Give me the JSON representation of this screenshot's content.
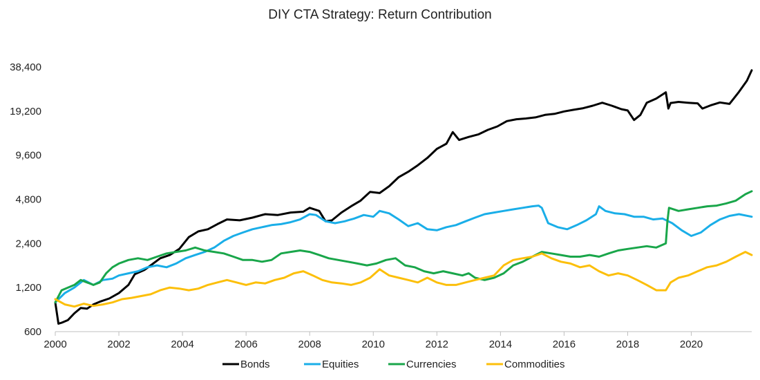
{
  "chart_data": {
    "type": "line",
    "title": "DIY CTA Strategy:  Return Contribution",
    "xlabel": "",
    "ylabel": "",
    "y_scale": "log",
    "ylim": [
      600,
      40000
    ],
    "xlim": [
      2000,
      2021.9
    ],
    "y_ticks": [
      600,
      1200,
      2400,
      4800,
      9600,
      19200,
      38400
    ],
    "y_tick_labels": [
      "600",
      "1,200",
      "2,400",
      "4,800",
      "9,600",
      "19,200",
      "38,400"
    ],
    "x_ticks": [
      2000,
      2002,
      2004,
      2006,
      2008,
      2010,
      2012,
      2014,
      2016,
      2018,
      2020
    ],
    "x_tick_labels": [
      "2000",
      "2002",
      "2004",
      "2006",
      "2008",
      "2010",
      "2012",
      "2014",
      "2016",
      "2018",
      "2020"
    ],
    "legend_position": "bottom-center",
    "series": [
      {
        "name": "Bonds",
        "color": "#000000",
        "x": [
          2000.0,
          2000.1,
          2000.2,
          2000.4,
          2000.6,
          2000.8,
          2001.0,
          2001.2,
          2001.4,
          2001.7,
          2002.0,
          2002.3,
          2002.5,
          2002.8,
          2003.0,
          2003.3,
          2003.6,
          2003.9,
          2004.2,
          2004.5,
          2004.8,
          2005.1,
          2005.4,
          2005.8,
          2006.2,
          2006.6,
          2007.0,
          2007.4,
          2007.8,
          2008.0,
          2008.3,
          2008.5,
          2008.7,
          2009.0,
          2009.3,
          2009.6,
          2009.9,
          2010.2,
          2010.5,
          2010.8,
          2011.1,
          2011.4,
          2011.7,
          2012.0,
          2012.3,
          2012.5,
          2012.7,
          2013.0,
          2013.3,
          2013.6,
          2013.9,
          2014.2,
          2014.5,
          2014.8,
          2015.1,
          2015.4,
          2015.7,
          2016.0,
          2016.3,
          2016.6,
          2016.9,
          2017.2,
          2017.5,
          2017.8,
          2018.0,
          2018.2,
          2018.4,
          2018.6,
          2018.9,
          2019.2,
          2019.28,
          2019.35,
          2019.6,
          2019.9,
          2020.2,
          2020.35,
          2020.6,
          2020.9,
          2021.2,
          2021.5,
          2021.75,
          2021.9
        ],
        "values": [
          950,
          680,
          690,
          720,
          800,
          870,
          860,
          920,
          960,
          1010,
          1100,
          1250,
          1480,
          1580,
          1700,
          1900,
          2000,
          2200,
          2650,
          2900,
          3000,
          3250,
          3500,
          3450,
          3600,
          3800,
          3750,
          3900,
          3950,
          4200,
          4000,
          3400,
          3450,
          3900,
          4300,
          4700,
          5400,
          5300,
          5900,
          6800,
          7400,
          8200,
          9200,
          10600,
          11500,
          13800,
          12200,
          12800,
          13300,
          14300,
          15100,
          16400,
          16900,
          17100,
          17400,
          18100,
          18400,
          19100,
          19600,
          20100,
          20900,
          21900,
          20900,
          19800,
          19400,
          16700,
          18100,
          21900,
          23400,
          25800,
          20000,
          21800,
          22200,
          21900,
          21700,
          20000,
          21000,
          22000,
          21500,
          26000,
          31000,
          36500
        ]
      },
      {
        "name": "Equities",
        "color": "#1aaee8",
        "x": [
          2000.0,
          2000.3,
          2000.6,
          2000.9,
          2001.2,
          2001.5,
          2001.8,
          2002.0,
          2002.3,
          2002.6,
          2002.9,
          2003.2,
          2003.5,
          2003.8,
          2004.1,
          2004.4,
          2004.7,
          2005.0,
          2005.3,
          2005.6,
          2005.9,
          2006.2,
          2006.5,
          2006.8,
          2007.1,
          2007.4,
          2007.7,
          2008.0,
          2008.2,
          2008.5,
          2008.8,
          2009.1,
          2009.4,
          2009.7,
          2010.0,
          2010.2,
          2010.5,
          2010.8,
          2011.1,
          2011.4,
          2011.7,
          2012.0,
          2012.3,
          2012.6,
          2012.9,
          2013.2,
          2013.5,
          2013.8,
          2014.1,
          2014.4,
          2014.7,
          2015.0,
          2015.2,
          2015.3,
          2015.5,
          2015.8,
          2016.1,
          2016.4,
          2016.7,
          2017.0,
          2017.1,
          2017.3,
          2017.6,
          2017.9,
          2018.2,
          2018.5,
          2018.8,
          2019.1,
          2019.4,
          2019.7,
          2020.0,
          2020.3,
          2020.6,
          2020.9,
          2021.2,
          2021.5,
          2021.9
        ],
        "values": [
          950,
          1100,
          1200,
          1350,
          1250,
          1350,
          1380,
          1450,
          1500,
          1550,
          1650,
          1700,
          1650,
          1750,
          1900,
          2000,
          2100,
          2250,
          2500,
          2700,
          2850,
          3000,
          3100,
          3200,
          3250,
          3350,
          3500,
          3800,
          3750,
          3400,
          3300,
          3400,
          3550,
          3750,
          3650,
          4000,
          3850,
          3500,
          3150,
          3300,
          3000,
          2950,
          3100,
          3200,
          3400,
          3600,
          3800,
          3900,
          4000,
          4100,
          4200,
          4300,
          4350,
          4200,
          3300,
          3100,
          3000,
          3200,
          3450,
          3800,
          4300,
          4000,
          3850,
          3800,
          3650,
          3650,
          3500,
          3550,
          3300,
          2950,
          2700,
          2850,
          3200,
          3500,
          3700,
          3800,
          3650
        ]
      },
      {
        "name": "Currencies",
        "color": "#19a64a",
        "x": [
          2000.0,
          2000.2,
          2000.4,
          2000.6,
          2000.8,
          2001.0,
          2001.2,
          2001.4,
          2001.6,
          2001.8,
          2002.0,
          2002.3,
          2002.6,
          2002.9,
          2003.2,
          2003.5,
          2003.8,
          2004.1,
          2004.4,
          2004.7,
          2005.0,
          2005.3,
          2005.6,
          2005.9,
          2006.2,
          2006.5,
          2006.8,
          2007.1,
          2007.4,
          2007.7,
          2008.0,
          2008.3,
          2008.6,
          2008.9,
          2009.2,
          2009.5,
          2009.8,
          2010.1,
          2010.4,
          2010.7,
          2011.0,
          2011.3,
          2011.6,
          2011.9,
          2012.2,
          2012.5,
          2012.8,
          2013.0,
          2013.2,
          2013.5,
          2013.8,
          2014.1,
          2014.4,
          2014.7,
          2015.0,
          2015.3,
          2015.6,
          2015.9,
          2016.2,
          2016.5,
          2016.8,
          2017.1,
          2017.4,
          2017.7,
          2018.0,
          2018.3,
          2018.6,
          2018.9,
          2019.2,
          2019.25,
          2019.3,
          2019.6,
          2019.9,
          2020.2,
          2020.5,
          2020.8,
          2021.1,
          2021.4,
          2021.7,
          2021.9
        ],
        "values": [
          950,
          1150,
          1200,
          1250,
          1350,
          1300,
          1250,
          1300,
          1500,
          1650,
          1750,
          1850,
          1900,
          1850,
          1950,
          2050,
          2100,
          2150,
          2250,
          2150,
          2100,
          2050,
          1950,
          1850,
          1850,
          1800,
          1850,
          2050,
          2100,
          2150,
          2100,
          2000,
          1900,
          1850,
          1800,
          1750,
          1700,
          1750,
          1850,
          1900,
          1700,
          1650,
          1550,
          1500,
          1550,
          1500,
          1450,
          1500,
          1400,
          1350,
          1400,
          1500,
          1700,
          1800,
          1950,
          2100,
          2050,
          2000,
          1950,
          1950,
          2000,
          1950,
          2050,
          2150,
          2200,
          2250,
          2300,
          2250,
          2400,
          3400,
          4200,
          4000,
          4100,
          4200,
          4300,
          4350,
          4500,
          4700,
          5200,
          5450
        ]
      },
      {
        "name": "Commodities",
        "color": "#fcbf0a",
        "x": [
          2000.0,
          2000.3,
          2000.6,
          2000.9,
          2001.2,
          2001.5,
          2001.8,
          2002.1,
          2002.4,
          2002.7,
          2003.0,
          2003.3,
          2003.6,
          2003.9,
          2004.2,
          2004.5,
          2004.8,
          2005.1,
          2005.4,
          2005.7,
          2006.0,
          2006.3,
          2006.6,
          2006.9,
          2007.2,
          2007.5,
          2007.8,
          2008.1,
          2008.4,
          2008.7,
          2009.0,
          2009.3,
          2009.6,
          2009.9,
          2010.2,
          2010.5,
          2010.8,
          2011.1,
          2011.4,
          2011.7,
          2012.0,
          2012.3,
          2012.6,
          2012.9,
          2013.2,
          2013.5,
          2013.8,
          2014.1,
          2014.4,
          2014.7,
          2015.0,
          2015.3,
          2015.6,
          2015.9,
          2016.2,
          2016.5,
          2016.8,
          2017.1,
          2017.4,
          2017.7,
          2018.0,
          2018.3,
          2018.6,
          2018.9,
          2019.2,
          2019.35,
          2019.6,
          2019.9,
          2020.2,
          2020.5,
          2020.8,
          2021.1,
          2021.4,
          2021.7,
          2021.9
        ],
        "values": [
          1000,
          920,
          890,
          930,
          900,
          920,
          950,
          1000,
          1020,
          1050,
          1080,
          1150,
          1200,
          1180,
          1150,
          1180,
          1250,
          1300,
          1350,
          1300,
          1250,
          1300,
          1280,
          1350,
          1400,
          1500,
          1550,
          1450,
          1350,
          1300,
          1280,
          1250,
          1300,
          1400,
          1600,
          1450,
          1400,
          1350,
          1300,
          1400,
          1300,
          1250,
          1250,
          1300,
          1350,
          1400,
          1450,
          1700,
          1850,
          1900,
          1950,
          2050,
          1900,
          1800,
          1750,
          1650,
          1700,
          1550,
          1450,
          1500,
          1450,
          1350,
          1250,
          1150,
          1150,
          1300,
          1400,
          1450,
          1550,
          1650,
          1700,
          1800,
          1950,
          2100,
          2000
        ]
      }
    ]
  }
}
